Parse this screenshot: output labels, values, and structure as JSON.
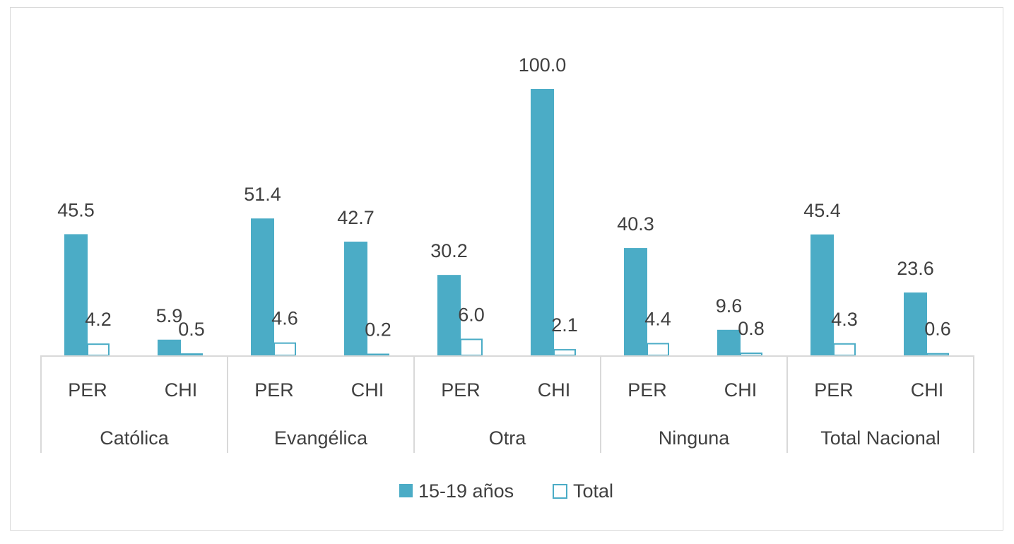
{
  "chart_data": {
    "type": "bar",
    "title": "",
    "xlabel": "",
    "ylabel": "",
    "ylim": [
      0,
      100
    ],
    "legend_position": "bottom",
    "grid": false,
    "groups": [
      "Católica",
      "Evangélica",
      "Otra",
      "Ninguna",
      "Total Nacional"
    ],
    "subcategories": [
      "PER",
      "CHI"
    ],
    "series": [
      {
        "name": "15-19 años",
        "style": "filled",
        "values": [
          45.5,
          5.9,
          51.4,
          42.7,
          30.2,
          100.0,
          40.3,
          9.6,
          45.4,
          23.6
        ],
        "labels": [
          "45.5",
          "5.9",
          "51.4",
          "42.7",
          "30.2",
          "100.0",
          "40.3",
          "9.6",
          "45.4",
          "23.6"
        ]
      },
      {
        "name": "Total",
        "style": "outline",
        "values": [
          4.2,
          0.5,
          4.6,
          0.2,
          6.0,
          2.1,
          4.4,
          0.8,
          4.3,
          0.6
        ],
        "labels": [
          "4.2",
          "0.5",
          "4.6",
          "0.2",
          "6.0",
          "2.1",
          "4.4",
          "0.8",
          "4.3",
          "0.6"
        ]
      }
    ]
  },
  "colors": {
    "series_fill": "#4bacc6",
    "axis": "#d9d9d9",
    "text": "#404040"
  }
}
